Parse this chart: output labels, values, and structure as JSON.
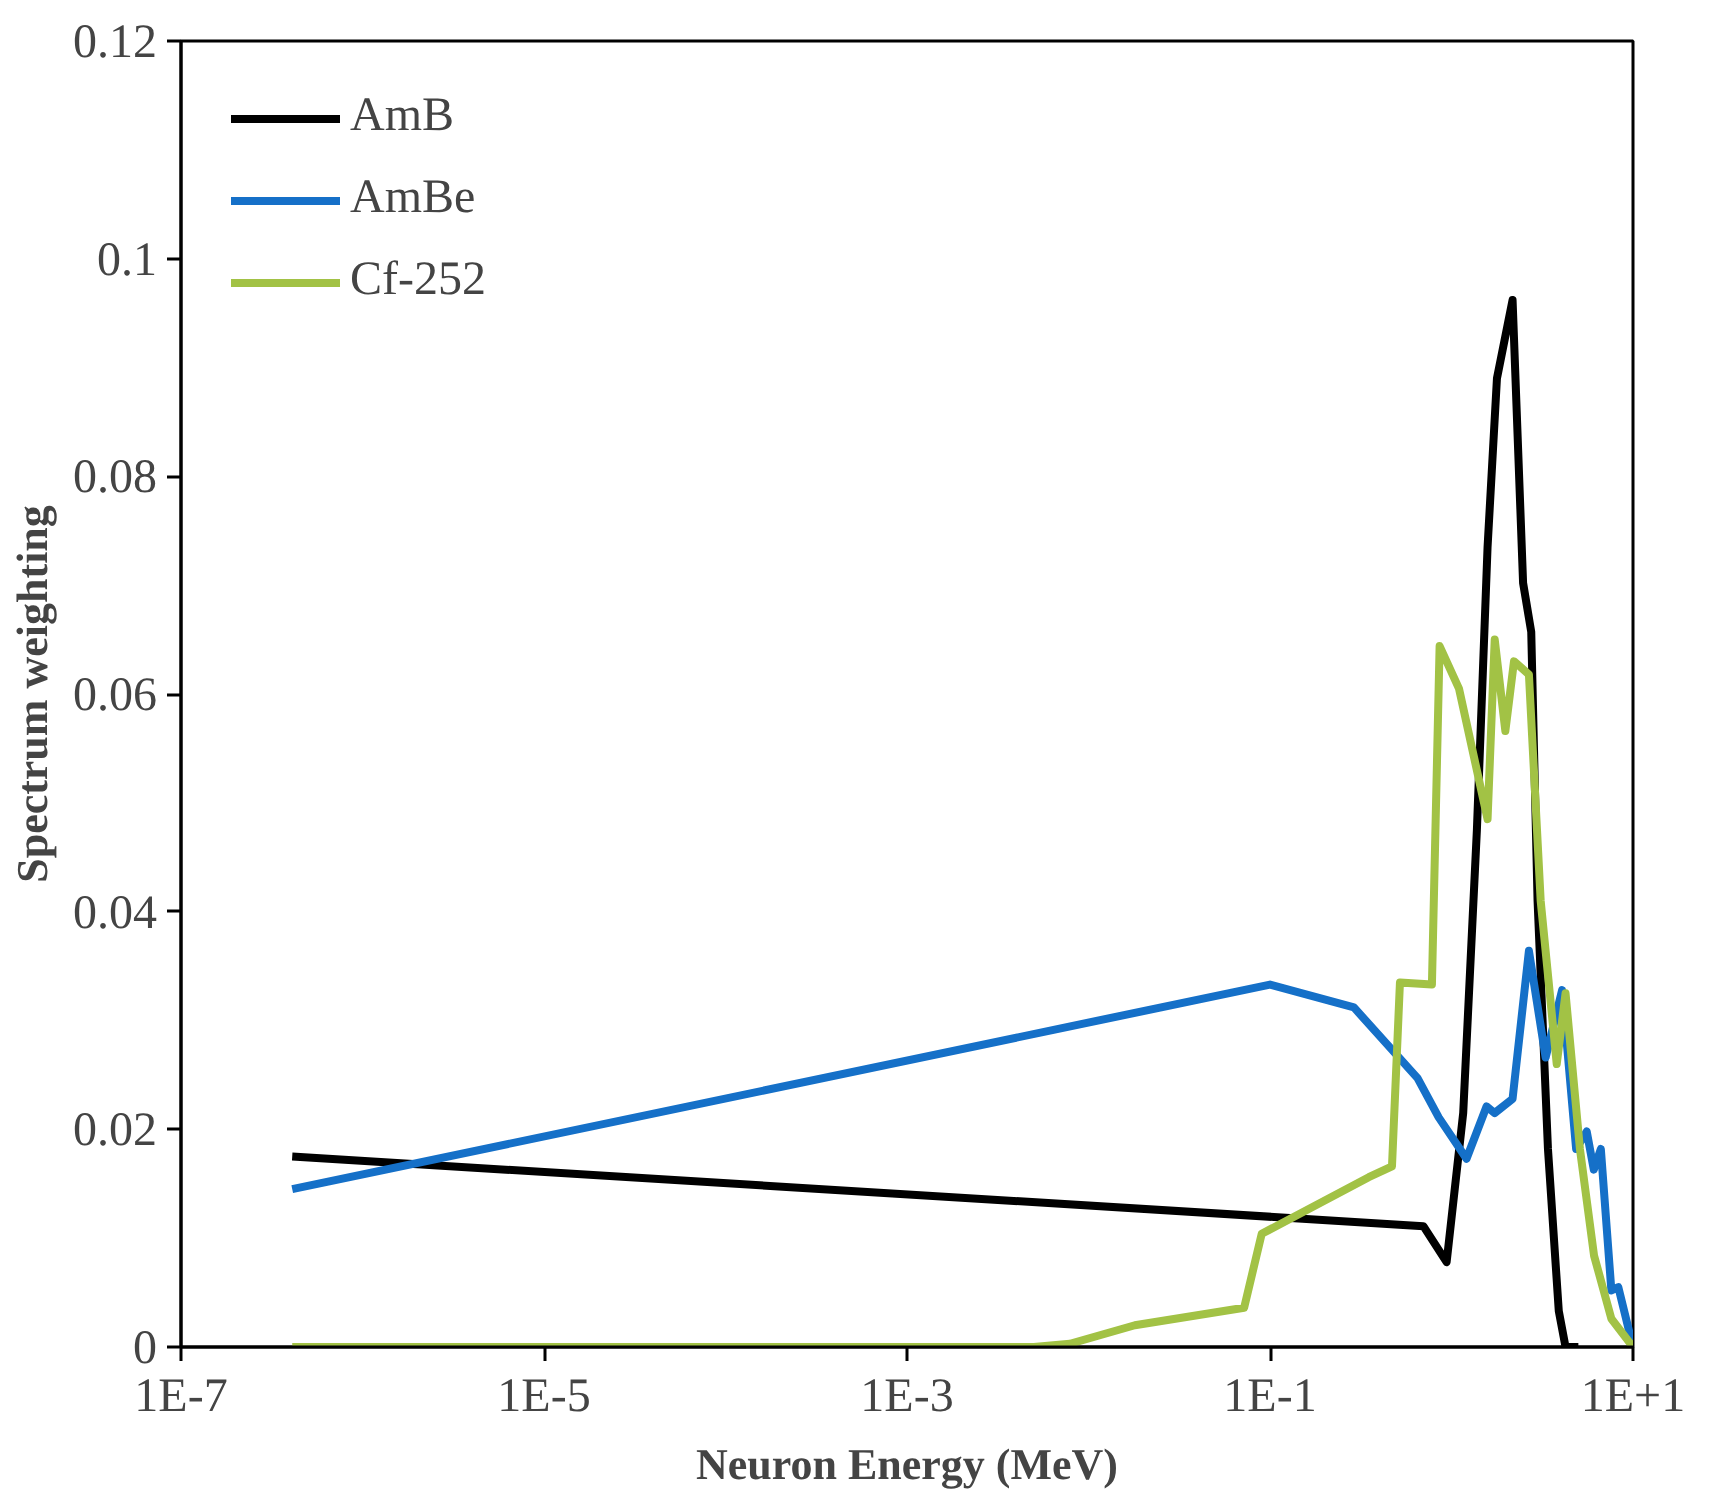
{
  "chart_data": {
    "type": "line",
    "xlabel": "Neuron Energy (MeV)",
    "ylabel": "Spectrum weighting",
    "log": "x",
    "xlim": [
      1e-07,
      10
    ],
    "ylim": [
      0,
      0.12
    ],
    "xticks": [
      {
        "value": 1e-07,
        "label": "1E-7"
      },
      {
        "value": 1e-05,
        "label": "1E-5"
      },
      {
        "value": 0.001,
        "label": "1E-3"
      },
      {
        "value": 0.1,
        "label": "1E-1"
      },
      {
        "value": 10,
        "label": "1E+1"
      }
    ],
    "yticks": [
      0,
      0.02,
      0.04,
      0.06,
      0.08,
      0.1,
      0.12
    ],
    "grid": false,
    "legend": "top left",
    "marker": "none",
    "line_style": "solid",
    "series": [
      {
        "name": "AmB",
        "color": "#000000",
        "x": [
          4.1e-07,
          0.7,
          0.94,
          1.16,
          1.38,
          1.58,
          1.78,
          2.17,
          2.48,
          2.75,
          2.98,
          3.4,
          3.9,
          4.25,
          5.0
        ],
        "values": [
          0.0175,
          0.0111,
          0.0078,
          0.0215,
          0.0475,
          0.0735,
          0.089,
          0.0962,
          0.0702,
          0.0657,
          0.041,
          0.0182,
          0.0033,
          0,
          0
        ]
      },
      {
        "name": "AmBe",
        "color": "#1570c8",
        "x": [
          4.1e-07,
          0.1,
          0.29,
          0.65,
          0.85,
          1.21,
          1.56,
          1.73,
          2.17,
          2.67,
          3.3,
          4.07,
          4.86,
          5.56,
          6.08,
          6.65,
          7.6,
          8.3,
          10
        ],
        "values": [
          0.0145,
          0.0333,
          0.0312,
          0.0247,
          0.0211,
          0.0173,
          0.0221,
          0.0215,
          0.0228,
          0.0364,
          0.0266,
          0.0328,
          0.0182,
          0.0198,
          0.0163,
          0.0182,
          0.0052,
          0.0055,
          0
        ]
      },
      {
        "name": "Cf-252",
        "color": "#a2c245",
        "x": [
          4.1e-07,
          0.005,
          0.0079,
          0.018,
          0.072,
          0.09,
          0.35,
          0.47,
          0.52,
          0.78,
          0.86,
          1.1,
          1.58,
          1.73,
          1.98,
          2.21,
          2.67,
          3.1,
          3.8,
          4.25,
          5.1,
          6.1,
          7.6,
          10
        ],
        "values": [
          0,
          0,
          0.0003,
          0.002,
          0.0036,
          0.0104,
          0.0156,
          0.0166,
          0.0335,
          0.0333,
          0.0644,
          0.0605,
          0.0485,
          0.065,
          0.0566,
          0.063,
          0.0618,
          0.041,
          0.026,
          0.0325,
          0.0182,
          0.0084,
          0.0026,
          0
        ]
      }
    ]
  }
}
